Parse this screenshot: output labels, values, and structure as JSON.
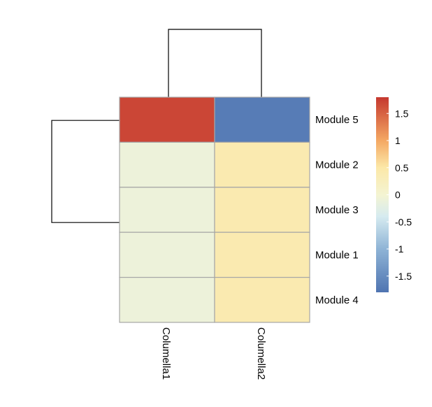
{
  "chart_data": {
    "type": "heatmap",
    "title": "",
    "columns": [
      "Columella1",
      "Columella2"
    ],
    "rows": [
      "Module 5",
      "Module 2",
      "Module 3",
      "Module 1",
      "Module 4"
    ],
    "values": [
      [
        1.7,
        -1.7
      ],
      [
        -0.1,
        0.4
      ],
      [
        -0.1,
        0.4
      ],
      [
        -0.1,
        0.4
      ],
      [
        -0.1,
        0.4
      ]
    ],
    "color_scale": {
      "min": -1.8,
      "max": 1.8,
      "stops": [
        {
          "value": -1.8,
          "color": "#4f74b1"
        },
        {
          "value": -1.0,
          "color": "#8fb4d6"
        },
        {
          "value": -0.4,
          "color": "#d6ebf0"
        },
        {
          "value": 0.0,
          "color": "#f4f4d2"
        },
        {
          "value": 0.5,
          "color": "#fce8a8"
        },
        {
          "value": 1.0,
          "color": "#f4a863"
        },
        {
          "value": 1.8,
          "color": "#c5382f"
        }
      ],
      "ticks": [
        1.5,
        1,
        0.5,
        0,
        -0.5,
        -1,
        -1.5
      ],
      "tick_labels": [
        "1.5",
        "1",
        "0.5",
        "0",
        "-0.5",
        "-1",
        "-1.5"
      ]
    },
    "row_dendrogram": {
      "merges": [
        {
          "members": [
            "Module 2",
            "Module 3",
            "Module 1",
            "Module 4"
          ],
          "height": 0.0
        },
        {
          "members": [
            "Module 5",
            "Module 2",
            "Module 3",
            "Module 1",
            "Module 4"
          ],
          "height": 1.0
        }
      ]
    },
    "column_dendrogram": {
      "merges": [
        {
          "members": [
            "Columella1",
            "Columella2"
          ],
          "height": 1.0
        }
      ]
    },
    "legend_position": "right",
    "grid": false
  }
}
